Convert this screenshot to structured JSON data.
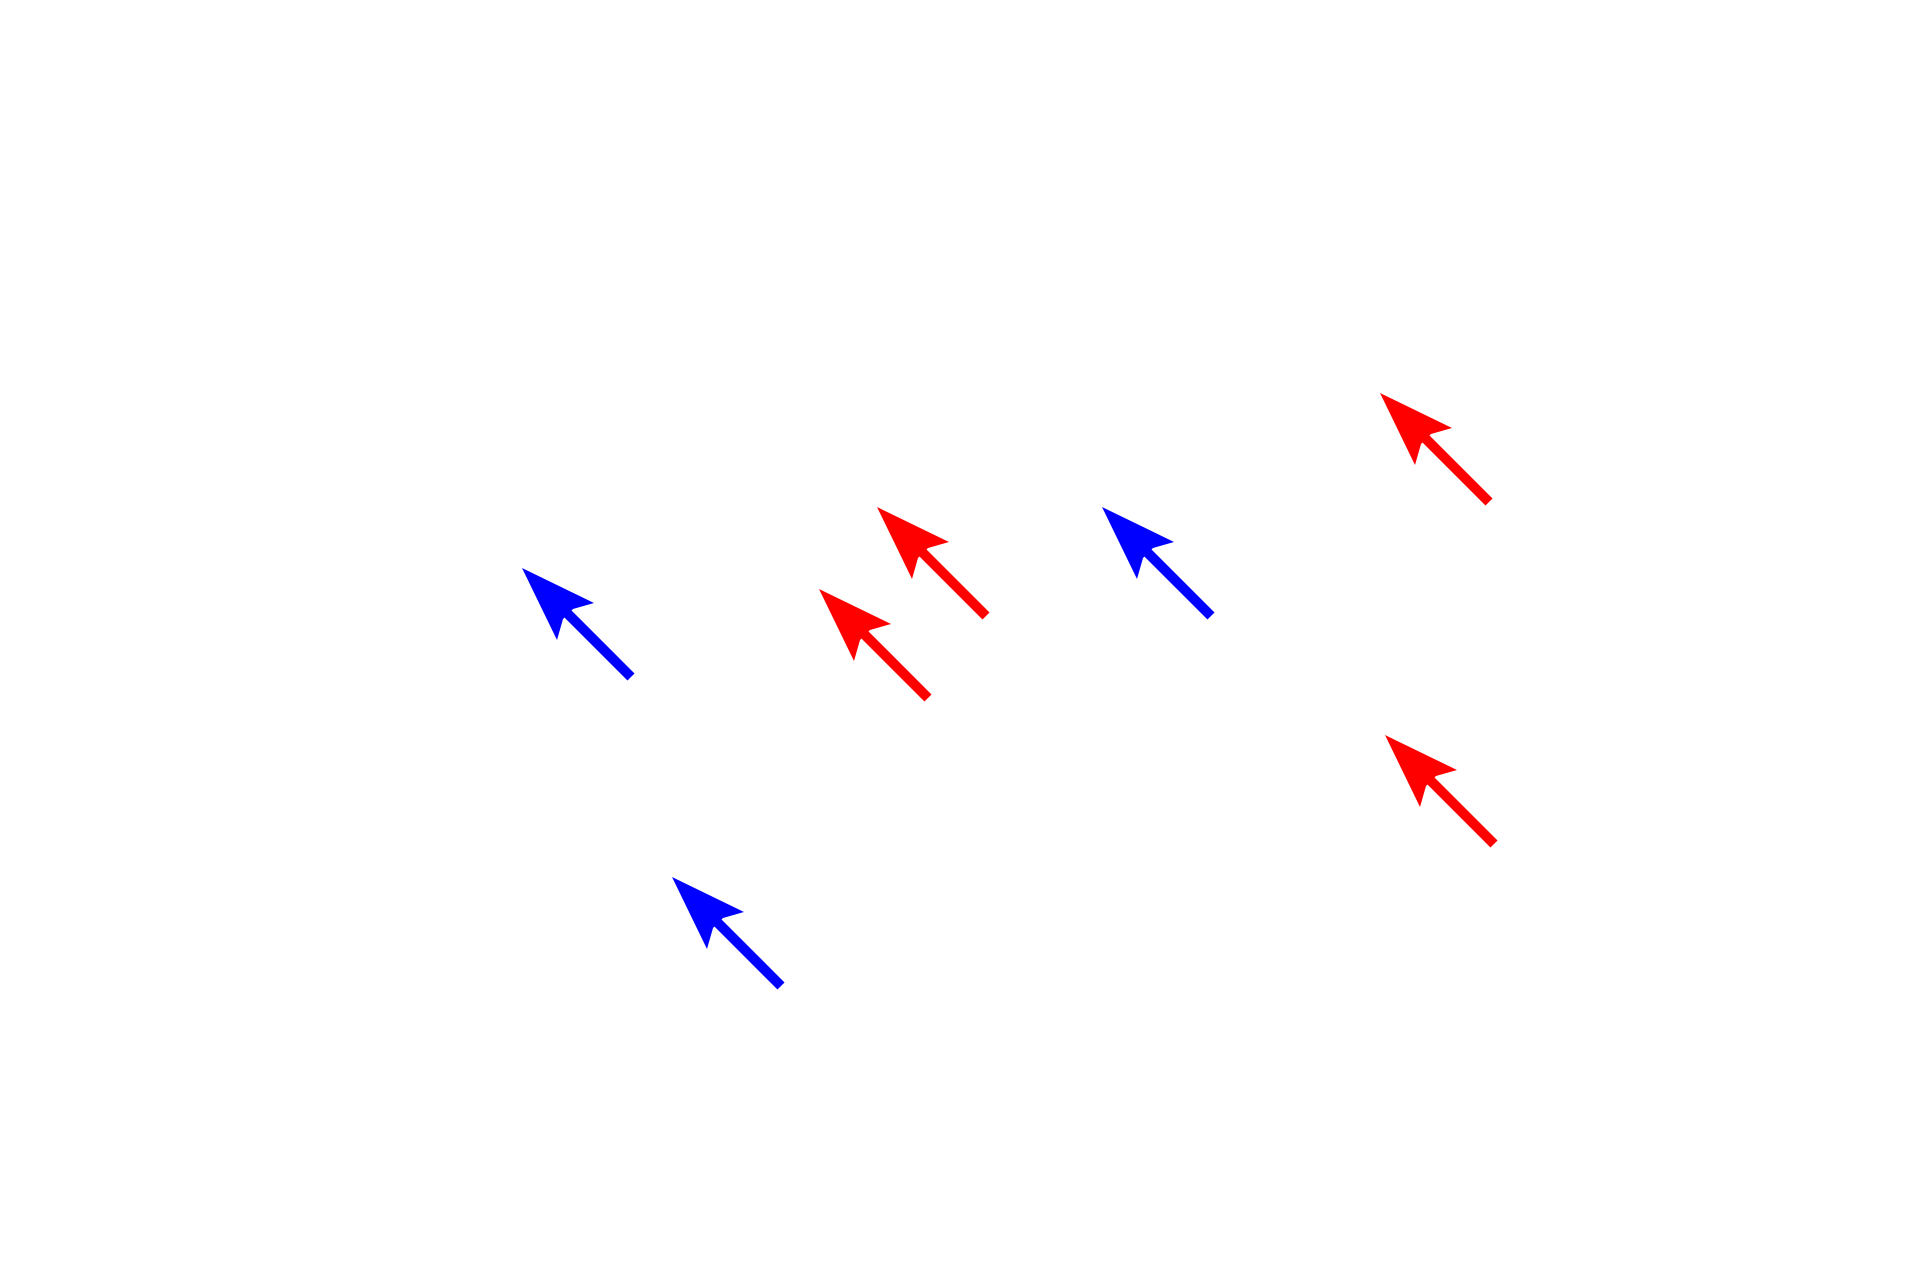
{
  "diagram": {
    "background": "#ffffff",
    "arrows": [
      {
        "color": "#0000ff",
        "direction": "up-left"
      },
      {
        "color": "#ff0000",
        "direction": "up-left"
      },
      {
        "color": "#ff0000",
        "direction": "up-left"
      },
      {
        "color": "#0000ff",
        "direction": "up-left"
      },
      {
        "color": "#ff0000",
        "direction": "up-left"
      },
      {
        "color": "#ff0000",
        "direction": "up-left"
      },
      {
        "color": "#0000ff",
        "direction": "up-left"
      }
    ]
  }
}
